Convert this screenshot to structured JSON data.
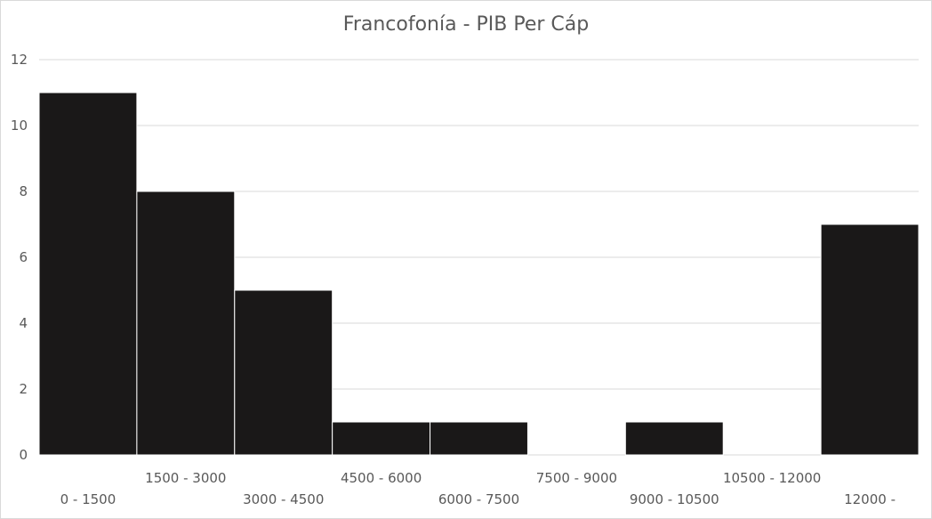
{
  "chart_data": {
    "type": "bar",
    "title": "Francofonía - PIB Per Cáp",
    "xlabel": "",
    "ylabel": "",
    "categories": [
      "0 - 1500",
      "1500 - 3000",
      "3000 - 4500",
      "4500 - 6000",
      "6000 - 7500",
      "7500 - 9000",
      "9000 - 10500",
      "10500 - 12000",
      "12000 -"
    ],
    "values": [
      11,
      8,
      5,
      1,
      1,
      0,
      1,
      0,
      7
    ],
    "ylim": [
      0,
      12
    ],
    "yticks": [
      0,
      2,
      4,
      6,
      8,
      10,
      12
    ],
    "grid": true,
    "legend": "none",
    "colors": {
      "bar": "#1a1818",
      "bar_edge": "#ffffff",
      "grid": "#d9d9d9",
      "text": "#595959"
    }
  }
}
